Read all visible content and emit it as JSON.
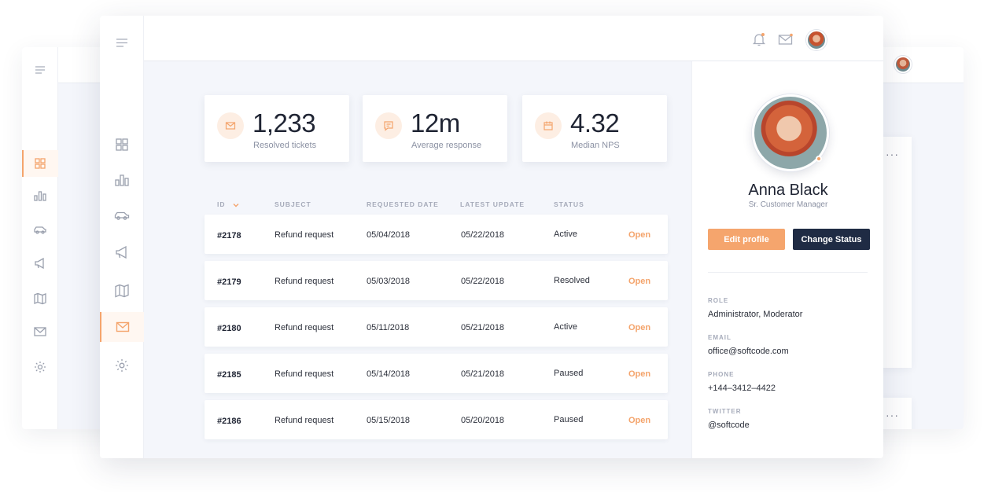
{
  "stats": [
    {
      "value": "1,233",
      "label": "Resolved tickets",
      "icon": "mail-icon"
    },
    {
      "value": "12m",
      "label": "Average response",
      "icon": "message-icon"
    },
    {
      "value": "4.32",
      "label": "Median NPS",
      "icon": "calendar-icon"
    }
  ],
  "table": {
    "headers": {
      "id": "ID",
      "subject": "SUBJECT",
      "requested": "REQUESTED DATE",
      "updated": "LATEST UPDATE",
      "status": "STATUS"
    },
    "rows": [
      {
        "id": "#2178",
        "subject": "Refund request",
        "requested": "05/04/2018",
        "updated": "05/22/2018",
        "status": "Active",
        "action": "Open"
      },
      {
        "id": "#2179",
        "subject": "Refund request",
        "requested": "05/03/2018",
        "updated": "05/22/2018",
        "status": "Resolved",
        "action": "Open"
      },
      {
        "id": "#2180",
        "subject": "Refund request",
        "requested": "05/11/2018",
        "updated": "05/21/2018",
        "status": "Active",
        "action": "Open"
      },
      {
        "id": "#2185",
        "subject": "Refund request",
        "requested": "05/14/2018",
        "updated": "05/21/2018",
        "status": "Paused",
        "action": "Open"
      },
      {
        "id": "#2186",
        "subject": "Refund request",
        "requested": "05/15/2018",
        "updated": "05/20/2018",
        "status": "Paused",
        "action": "Open"
      }
    ]
  },
  "profile": {
    "name": "Anna Black",
    "role": "Sr. Customer Manager",
    "edit_label": "Edit profile",
    "status_label": "Change Status",
    "fields": [
      {
        "label": "ROLE",
        "value": "Administrator, Moderator"
      },
      {
        "label": "EMAIL",
        "value": "office@softcode.com"
      },
      {
        "label": "PHONE",
        "value": "+144–3412–4422"
      },
      {
        "label": "TWITTER",
        "value": "@softcode"
      }
    ]
  },
  "colors": {
    "accent": "#f4a46c",
    "dark": "#1f2b44"
  },
  "icons": {
    "sidebar": [
      "grid-icon",
      "bar-chart-icon",
      "car-icon",
      "megaphone-icon",
      "map-icon",
      "mail-icon",
      "settings-icon"
    ],
    "topbar": [
      "bell-icon",
      "envelope-icon",
      "avatar"
    ]
  }
}
